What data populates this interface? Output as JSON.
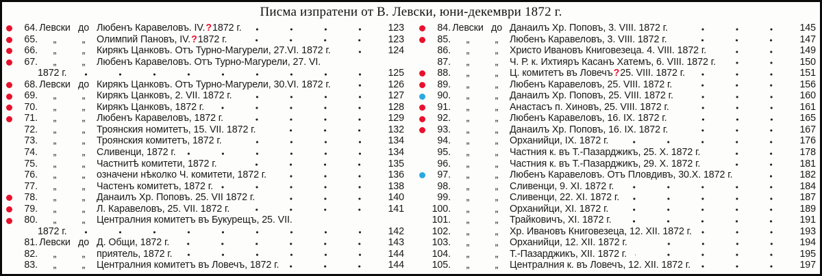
{
  "title": "Писма изпратени от В. Левски, юни-декември 1872 г.",
  "colors": {
    "red_dot": "#e8112d",
    "blue_dot": "#29a9e1",
    "red_mark": "#e8112d",
    "ink": "#171717",
    "paper": "#fdfdfb"
  },
  "ditto_mark": "„",
  "columns": [
    {
      "side": "left",
      "rows": [
        {
          "dot": "red",
          "num": "64.",
          "lead": "Левски до",
          "t1": "Любенъ Каравеловъ. IV.",
          "q": "?",
          "t2": "1872 г.",
          "page": "123"
        },
        {
          "dot": "red",
          "num": "65.",
          "lead": "ditto",
          "t1": "Олимпий Пановъ, IV.",
          "q": "?",
          "t2": "1872 г.",
          "page": "123"
        },
        {
          "dot": "red",
          "num": "66.",
          "lead": "ditto",
          "t1": "Кирякъ Цанковъ. Отъ Турно-Магурели, 27.VI. 1872 г.",
          "q": "",
          "t2": "",
          "page": "124"
        },
        {
          "dot": "red",
          "num": "67.",
          "lead": "ditto",
          "t1": "Любенъ Каравеловъ. Отъ Турно-Магурели, 27. VI.",
          "q": "",
          "t2": "",
          "page": ""
        },
        {
          "wrap": true,
          "dot": "",
          "num": "",
          "lead": "",
          "t1": "1872 г.",
          "q": "",
          "t2": "",
          "page": "125"
        },
        {
          "dot": "red",
          "num": "68.",
          "lead": "Левски до",
          "t1": "Кирякъ Цанковъ. Отъ Турно-Магурели, 30.VI. 1872 г.",
          "q": "",
          "t2": "",
          "page": "126"
        },
        {
          "dot": "red",
          "num": "69.",
          "lead": "ditto",
          "t1": "Кирякъ Цанковъ, 2. VII. 1872 г.",
          "q": "",
          "t2": "",
          "page": "127"
        },
        {
          "dot": "red",
          "num": "70.",
          "lead": "ditto",
          "t1": "Кирякъ Цанковъ, 1872 г.",
          "q": "",
          "t2": "",
          "page": "128"
        },
        {
          "dot": "red",
          "num": "71.",
          "lead": "ditto",
          "t1": "Любенъ Каравеловъ, 1872 г.",
          "q": "",
          "t2": "",
          "page": "129"
        },
        {
          "dot": "",
          "num": "72.",
          "lead": "ditto",
          "t1": "Троянския номитетъ, 15. VII. 1872 г.",
          "q": "",
          "t2": "",
          "page": "132"
        },
        {
          "dot": "",
          "num": "73.",
          "lead": "ditto",
          "t1": "Троянския комитетъ, 1872 г.",
          "q": "",
          "t2": "",
          "page": "134"
        },
        {
          "dot": "",
          "num": "74.",
          "lead": "ditto",
          "t1": "Сливенци, 1872 г.",
          "q": "",
          "t2": "",
          "page": "134"
        },
        {
          "dot": "",
          "num": "75.",
          "lead": "ditto",
          "t1": "Частнитѣ комитети, 1872 г.",
          "q": "",
          "t2": "",
          "page": "135"
        },
        {
          "dot": "",
          "num": "76.",
          "lead": "ditto",
          "t1": "означени нѣколко Ч. комитети, 1872 г.",
          "q": "",
          "t2": "",
          "page": "136"
        },
        {
          "dot": "",
          "num": "77.",
          "lead": "ditto",
          "t1": "Частенъ комитетъ, 1872 г.",
          "q": "",
          "t2": "",
          "page": "138"
        },
        {
          "dot": "red",
          "num": "78.",
          "lead": "ditto",
          "t1": "Данаилъ Хр. Поповъ. 25. VII 1872 г.",
          "q": "",
          "t2": "",
          "page": "140"
        },
        {
          "dot": "red",
          "num": "79.",
          "lead": "ditto",
          "t1": "Л. Каравеловъ, 25. VII. 1872 г.",
          "q": "",
          "t2": "",
          "page": "141"
        },
        {
          "dot": "red",
          "num": "80.",
          "lead": "ditto",
          "t1": "Централния комитетъ въ Букурещъ, 25. VII.",
          "q": "",
          "t2": "",
          "page": ""
        },
        {
          "wrap": true,
          "dot": "",
          "num": "",
          "lead": "",
          "t1": "1872 г.",
          "q": "",
          "t2": "",
          "page": "142"
        },
        {
          "dot": "",
          "num": "81.",
          "lead": "Левски до",
          "t1": "Д. Общи, 1872 г.",
          "q": "",
          "t2": "",
          "page": "143"
        },
        {
          "dot": "",
          "num": "82.",
          "lead": "ditto",
          "t1": "приятель, 1872 г.",
          "q": "",
          "t2": "",
          "page": "144"
        },
        {
          "dot": "",
          "num": "83.",
          "lead": "ditto",
          "t1": "Централния комитетъ въ Ловечъ, 1872 г.",
          "q": "",
          "t2": "",
          "page": "144"
        }
      ]
    },
    {
      "side": "right",
      "rows": [
        {
          "dot": "red",
          "num": "84.",
          "lead": "Левски до",
          "t1": "Данаилъ Хр. Поповъ, 3. VIII. 1872 г.",
          "q": "",
          "t2": "",
          "page": "145"
        },
        {
          "dot": "red",
          "num": "85.",
          "lead": "ditto",
          "t1": "Любенъ Каравеловъ, 3. VIII. 1872 г.",
          "q": "",
          "t2": "",
          "page": "147"
        },
        {
          "dot": "",
          "num": "86.",
          "lead": "ditto",
          "t1": "Христо Ивановъ Книговезеца. 4. VIII. 1872 г.",
          "q": "",
          "t2": "",
          "page": "149"
        },
        {
          "dot": "",
          "num": "87.",
          "lead": "ditto",
          "t1": "Ч. Р. к. Ихтияръ Касанъ Хатемъ, 6. VIII. 1872 г.",
          "q": "",
          "t2": "",
          "page": "150"
        },
        {
          "dot": "red",
          "num": "88.",
          "lead": "ditto",
          "t1": "Ц. комитетъ въ Ловечъ",
          "q": "?",
          "t2": "25. VIII. 1872 г.",
          "page": "151"
        },
        {
          "dot": "red",
          "num": "89.",
          "lead": "ditto",
          "t1": "Любенъ Каравеловъ, 25. VIII. 1872 г.",
          "q": "",
          "t2": "",
          "page": "156"
        },
        {
          "dot": "blue",
          "num": "90.",
          "lead": "ditto",
          "t1": "Данаилъ Хр. Поповъ, 25. VIII. 1872 г.",
          "q": "",
          "t2": "",
          "page": "160"
        },
        {
          "dot": "red",
          "num": "91.",
          "lead": "ditto",
          "t1": "Анастасъ п. Хиновъ, 25. VIII. 1872 г.",
          "q": "",
          "t2": "",
          "page": "161"
        },
        {
          "dot": "red",
          "num": "92.",
          "lead": "ditto",
          "t1": "Любенъ Каравеловъ, 16. IX. 1872 г.",
          "q": "",
          "t2": "",
          "page": "165"
        },
        {
          "dot": "red",
          "num": "93.",
          "lead": "ditto",
          "t1": "Данаилъ Хр. Поповъ, 16. IX. 1872 г.",
          "q": "",
          "t2": "",
          "page": "167"
        },
        {
          "dot": "",
          "num": "94.",
          "lead": "ditto",
          "t1": "Орханийци, IX. 1872 г.",
          "q": "",
          "t2": "",
          "page": "176"
        },
        {
          "dot": "",
          "num": "95.",
          "lead": "ditto",
          "t1": "Частния к. въ Т.-Пазарджикъ, 25. X. 1872 г.",
          "q": "",
          "t2": "",
          "page": "178"
        },
        {
          "dot": "",
          "num": "96.",
          "lead": "ditto",
          "t1": "Частния к. въ Т.-Пазарджикъ, 29. X. 1872 г.",
          "q": "",
          "t2": "",
          "page": "181"
        },
        {
          "dot": "blue",
          "num": "97.",
          "lead": "ditto",
          "t1": "Любенъ Каравеловъ. Отъ Пловдивъ, 30.X. 1872 г.",
          "q": "",
          "t2": "",
          "page": "182"
        },
        {
          "dot": "",
          "num": "98.",
          "lead": "ditto",
          "t1": "Сливенци, 9. XI. 1872 г.",
          "q": "",
          "t2": "",
          "page": "184"
        },
        {
          "dot": "",
          "num": "99.",
          "lead": "ditto",
          "t1": "Сливенци, 22. XI. 1872 г.",
          "q": "",
          "t2": "",
          "page": "187"
        },
        {
          "dot": "",
          "num": "100.",
          "lead": "ditto",
          "t1": "Орханийци, XI. 1872 г.",
          "q": "",
          "t2": "",
          "page": "189"
        },
        {
          "dot": "",
          "num": "101.",
          "lead": "ditto",
          "t1": "Трайковичъ, XI. 1872 г.",
          "q": "",
          "t2": "",
          "page": "191"
        },
        {
          "dot": "",
          "num": "102.",
          "lead": "ditto",
          "t1": "Хр. Ивановъ Книговезеца, 12. XII. 1872 г.",
          "q": "",
          "t2": "",
          "page": "193"
        },
        {
          "dot": "",
          "num": "103.",
          "lead": "ditto",
          "t1": "Орханийци, 12. XII. 1872 г.",
          "q": "",
          "t2": "",
          "page": "194"
        },
        {
          "dot": "",
          "num": "104.",
          "lead": "ditto",
          "t1": "Т.-Пазарджикъ, XII. 1872 г.",
          "q": "",
          "t2": "",
          "page": "195"
        },
        {
          "dot": "",
          "num": "105.",
          "lead": "ditto",
          "t1": "Централния к. въ Ловечъ, 12. XII. 1872 г.",
          "q": "",
          "t2": "",
          "page": "197"
        }
      ]
    }
  ]
}
